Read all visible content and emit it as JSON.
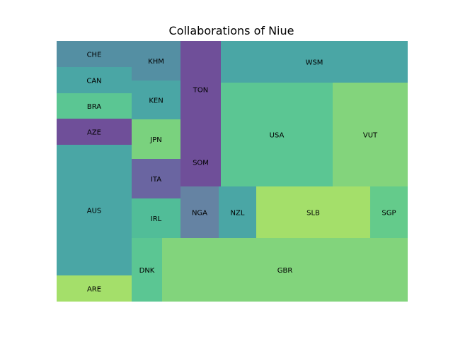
{
  "chart_data": {
    "type": "treemap",
    "title": "Collaborations of Niue",
    "tiles": [
      {
        "label": "AUS",
        "value": 50,
        "color": "#4aa6a5"
      },
      {
        "label": "GBR",
        "value": 64,
        "color": "#82d47c"
      },
      {
        "label": "USA",
        "value": 48,
        "color": "#5bc693"
      },
      {
        "label": "VUT",
        "value": 32,
        "color": "#83d47c"
      },
      {
        "label": "WSM",
        "value": 30,
        "color": "#4aa6a5"
      },
      {
        "label": "SLB",
        "value": 24,
        "color": "#a4df6a"
      },
      {
        "label": "TON",
        "value": 18,
        "color": "#6f4f99"
      },
      {
        "label": "SOM",
        "value": 10,
        "color": "#6f4f99"
      },
      {
        "label": "CHE",
        "value": 10,
        "color": "#548fa3"
      },
      {
        "label": "CAN",
        "value": 10,
        "color": "#4aa6a5"
      },
      {
        "label": "BRA",
        "value": 10,
        "color": "#5bc693"
      },
      {
        "label": "AZE",
        "value": 10,
        "color": "#6f4f99"
      },
      {
        "label": "ARE",
        "value": 10,
        "color": "#a4df6a"
      },
      {
        "label": "KHM",
        "value": 8,
        "color": "#548fa3"
      },
      {
        "label": "KEN",
        "value": 8,
        "color": "#4aa6a5"
      },
      {
        "label": "JPN",
        "value": 8,
        "color": "#7ad27e"
      },
      {
        "label": "ITA",
        "value": 8,
        "color": "#6a65a1"
      },
      {
        "label": "IRL",
        "value": 8,
        "color": "#51bd98"
      },
      {
        "label": "NGA",
        "value": 6,
        "color": "#6583a3"
      },
      {
        "label": "NZL",
        "value": 6,
        "color": "#4aa6a5"
      },
      {
        "label": "DNK",
        "value": 6,
        "color": "#5bc693"
      },
      {
        "label": "SGP",
        "value": 6,
        "color": "#64cb8b"
      }
    ]
  }
}
